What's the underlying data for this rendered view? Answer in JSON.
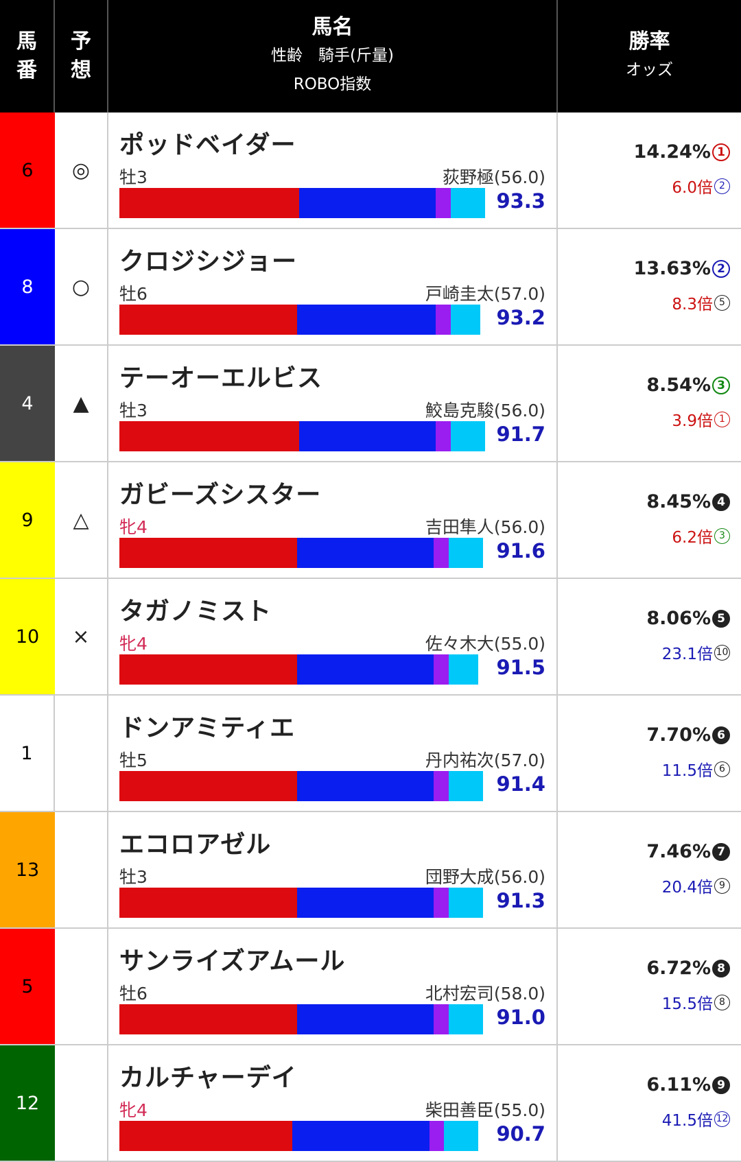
{
  "header": {
    "col_num": [
      "馬",
      "番"
    ],
    "col_mark": [
      "予",
      "想"
    ],
    "col_main_title": "馬名",
    "col_main_sub1": "性齢　騎手(斤量)",
    "col_main_sub2": "ROBO指数",
    "col_odds_title": "勝率",
    "col_odds_sub": "オッズ"
  },
  "colors": {
    "red": "#dd0a10",
    "blue": "#0a1ef0",
    "purple": "#9a1ef0",
    "cyan": "#00c8f8",
    "robo_text": "#1a1ab4",
    "mare_text": "#d22a55"
  },
  "rows": [
    {
      "num": "6",
      "frame_bg": "#ff0000",
      "frame_fg": "#000000",
      "mark": "◎",
      "name": "ポッドベイダー",
      "sex_age": "牡3",
      "mare": false,
      "jockey": "荻野極(56.0)",
      "robo": "93.3",
      "bar": [
        0.42,
        0.32,
        0.035,
        0.08
      ],
      "winrate": "14.24%",
      "wr_rank": "1",
      "wr_color": "#cc1111",
      "odds": "6.0倍",
      "odds_color": "#cc1111",
      "odds_rank": "2",
      "or_color": "#1a1ab4"
    },
    {
      "num": "8",
      "frame_bg": "#0000ff",
      "frame_fg": "#ffffff",
      "mark": "○",
      "name": "クロジシジョー",
      "sex_age": "牡6",
      "mare": false,
      "jockey": "戸崎圭太(57.0)",
      "robo": "93.2",
      "bar": [
        0.415,
        0.325,
        0.035,
        0.07
      ],
      "winrate": "13.63%",
      "wr_rank": "2",
      "wr_color": "#1a1ab4",
      "odds": "8.3倍",
      "odds_color": "#cc1111",
      "odds_rank": "5",
      "or_color": "#222222"
    },
    {
      "num": "4",
      "frame_bg": "#444444",
      "frame_fg": "#ffffff",
      "mark": "▲",
      "name": "テーオーエルビス",
      "sex_age": "牡3",
      "mare": false,
      "jockey": "鮫島克駿(56.0)",
      "robo": "91.7",
      "bar": [
        0.42,
        0.32,
        0.035,
        0.08
      ],
      "winrate": "8.54%",
      "wr_rank": "3",
      "wr_color": "#118811",
      "odds": "3.9倍",
      "odds_color": "#cc1111",
      "odds_rank": "1",
      "or_color": "#cc1111"
    },
    {
      "num": "9",
      "frame_bg": "#ffff00",
      "frame_fg": "#000000",
      "mark": "△",
      "name": "ガビーズシスター",
      "sex_age": "牝4",
      "mare": true,
      "jockey": "吉田隼人(56.0)",
      "robo": "91.6",
      "bar": [
        0.415,
        0.32,
        0.035,
        0.08
      ],
      "winrate": "8.45%",
      "wr_rank": "4",
      "wr_color": "fill",
      "odds": "6.2倍",
      "odds_color": "#cc1111",
      "odds_rank": "3",
      "or_color": "#118811"
    },
    {
      "num": "10",
      "frame_bg": "#ffff00",
      "frame_fg": "#000000",
      "mark": "×",
      "name": "タガノミスト",
      "sex_age": "牝4",
      "mare": true,
      "jockey": "佐々木大(55.0)",
      "robo": "91.5",
      "bar": [
        0.415,
        0.32,
        0.035,
        0.07
      ],
      "winrate": "8.06%",
      "wr_rank": "5",
      "wr_color": "fill",
      "odds": "23.1倍",
      "odds_color": "#1a1ab4",
      "odds_rank": "10",
      "or_color": "#222222"
    },
    {
      "num": "1",
      "frame_bg": "#ffffff",
      "frame_fg": "#000000",
      "mark": "",
      "name": "ドンアミティエ",
      "sex_age": "牡5",
      "mare": false,
      "jockey": "丹内祐次(57.0)",
      "robo": "91.4",
      "bar": [
        0.415,
        0.32,
        0.035,
        0.08
      ],
      "winrate": "7.70%",
      "wr_rank": "6",
      "wr_color": "fill",
      "odds": "11.5倍",
      "odds_color": "#1a1ab4",
      "odds_rank": "6",
      "or_color": "#222222"
    },
    {
      "num": "13",
      "frame_bg": "#ffa500",
      "frame_fg": "#000000",
      "mark": "",
      "name": "エコロアゼル",
      "sex_age": "牡3",
      "mare": false,
      "jockey": "団野大成(56.0)",
      "robo": "91.3",
      "bar": [
        0.415,
        0.32,
        0.035,
        0.08
      ],
      "winrate": "7.46%",
      "wr_rank": "7",
      "wr_color": "fill",
      "odds": "20.4倍",
      "odds_color": "#1a1ab4",
      "odds_rank": "9",
      "or_color": "#222222"
    },
    {
      "num": "5",
      "frame_bg": "#ff0000",
      "frame_fg": "#000000",
      "mark": "",
      "name": "サンライズアムール",
      "sex_age": "牡6",
      "mare": false,
      "jockey": "北村宏司(58.0)",
      "robo": "91.0",
      "bar": [
        0.415,
        0.32,
        0.035,
        0.08
      ],
      "winrate": "6.72%",
      "wr_rank": "8",
      "wr_color": "fill",
      "odds": "15.5倍",
      "odds_color": "#1a1ab4",
      "odds_rank": "8",
      "or_color": "#222222"
    },
    {
      "num": "12",
      "frame_bg": "#006400",
      "frame_fg": "#ffffff",
      "mark": "",
      "name": "カルチャーデイ",
      "sex_age": "牝4",
      "mare": true,
      "jockey": "柴田善臣(55.0)",
      "robo": "90.7",
      "bar": [
        0.405,
        0.32,
        0.035,
        0.08
      ],
      "winrate": "6.11%",
      "wr_rank": "9",
      "wr_color": "fill",
      "odds": "41.5倍",
      "odds_color": "#1a1ab4",
      "odds_rank": "12",
      "or_color": "#1a1ab4"
    }
  ]
}
